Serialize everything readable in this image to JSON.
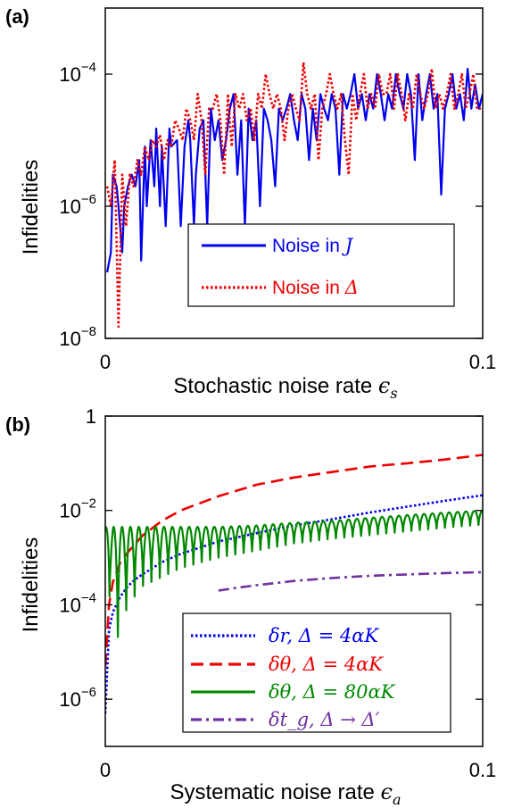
{
  "chart_data": [
    {
      "type": "line",
      "panel_label": "(a)",
      "xlabel": "Stochastic noise rate",
      "xlabel_symbol": "ϵ",
      "xlabel_sub": "s",
      "ylabel": "Infidelities",
      "x_scale": "linear",
      "y_scale": "log",
      "xlim": [
        0,
        0.1
      ],
      "ylim": [
        1e-08,
        0.001
      ],
      "x_ticks": [
        {
          "value": 0,
          "label": "0"
        },
        {
          "value": 0.1,
          "label": "0.1"
        }
      ],
      "y_ticks": [
        {
          "value": 1e-08,
          "base": "10",
          "exp": "−8"
        },
        {
          "value": 1e-06,
          "base": "10",
          "exp": "−6"
        },
        {
          "value": 0.0001,
          "base": "10",
          "exp": "−4"
        }
      ],
      "legend_position": "lower-right",
      "series": [
        {
          "name": "Noise in",
          "name_symbol": "J",
          "color": "#0000ee",
          "dash": "solid",
          "x": [
            0.0005,
            0.0015,
            0.002,
            0.003,
            0.0035,
            0.0045,
            0.005,
            0.006,
            0.007,
            0.008,
            0.009,
            0.0095,
            0.0105,
            0.011,
            0.012,
            0.013,
            0.0135,
            0.0145,
            0.015,
            0.016,
            0.017,
            0.0175,
            0.019,
            0.02,
            0.021,
            0.022,
            0.0225,
            0.0235,
            0.024,
            0.025,
            0.026,
            0.027,
            0.028,
            0.029,
            0.03,
            0.031,
            0.032,
            0.033,
            0.034,
            0.035,
            0.036,
            0.037,
            0.038,
            0.039,
            0.04,
            0.041,
            0.042,
            0.043,
            0.044,
            0.045,
            0.046,
            0.047,
            0.048,
            0.049,
            0.05,
            0.051,
            0.052,
            0.053,
            0.054,
            0.055,
            0.056,
            0.057,
            0.058,
            0.059,
            0.06,
            0.061,
            0.062,
            0.063,
            0.064,
            0.065,
            0.066,
            0.067,
            0.068,
            0.069,
            0.07,
            0.071,
            0.072,
            0.073,
            0.074,
            0.075,
            0.076,
            0.077,
            0.078,
            0.079,
            0.08,
            0.081,
            0.082,
            0.083,
            0.084,
            0.085,
            0.086,
            0.087,
            0.088,
            0.089,
            0.09,
            0.091,
            0.092,
            0.093,
            0.094,
            0.095,
            0.096,
            0.097,
            0.098,
            0.099,
            0.1
          ],
          "y": [
            1e-07,
            2e-07,
            3e-06,
            2e-06,
            1e-06,
            2e-07,
            1e-06,
            2e-06,
            3e-06,
            2e-06,
            5e-06,
            1.5e-07,
            8e-06,
            1e-06,
            1e-05,
            2e-06,
            1.5e-05,
            1e-06,
            8e-06,
            5e-07,
            1.5e-05,
            8e-06,
            1e-05,
            5e-07,
            8e-06,
            2e-05,
            1e-05,
            5e-07,
            3e-06,
            1.5e-05,
            2e-05,
            5e-07,
            3e-05,
            1e-05,
            2e-05,
            5e-06,
            1e-05,
            3e-05,
            5e-05,
            3e-06,
            2e-05,
            5e-07,
            3e-05,
            1e-05,
            2e-05,
            1e-06,
            3e-05,
            2e-05,
            1e-05,
            2e-06,
            3e-05,
            2e-05,
            3e-05,
            5e-05,
            2e-05,
            1e-05,
            5e-05,
            3e-05,
            5e-06,
            3e-05,
            1e-05,
            5e-05,
            3e-05,
            2e-05,
            5e-05,
            3e-05,
            3e-06,
            5e-05,
            3e-05,
            5e-05,
            0.0001,
            3e-05,
            5e-05,
            2e-05,
            5e-05,
            3e-05,
            0.0001,
            5e-05,
            2e-05,
            5e-05,
            3e-05,
            0.0001,
            5e-05,
            3e-05,
            0.0001,
            5e-05,
            5e-06,
            0.0001,
            2e-05,
            5e-05,
            0.0001,
            3e-05,
            5e-05,
            1.5e-06,
            3e-05,
            5e-05,
            0.0001,
            3e-05,
            5e-05,
            2e-05,
            0.00012,
            3e-05,
            7e-05,
            3e-05,
            5e-05
          ]
        },
        {
          "name": "Noise in",
          "name_symbol": "Δ",
          "color": "#ee0000",
          "dash": "dotted",
          "x": [
            0.0005,
            0.0015,
            0.0025,
            0.0035,
            0.0045,
            0.0055,
            0.0065,
            0.0075,
            0.0085,
            0.0095,
            0.0105,
            0.0115,
            0.0125,
            0.0135,
            0.0145,
            0.0155,
            0.0165,
            0.0175,
            0.0185,
            0.0195,
            0.0205,
            0.0215,
            0.0225,
            0.0235,
            0.0245,
            0.0255,
            0.0265,
            0.0275,
            0.0285,
            0.0295,
            0.0305,
            0.0315,
            0.0325,
            0.0335,
            0.0345,
            0.0355,
            0.0365,
            0.0375,
            0.0385,
            0.0395,
            0.0405,
            0.0415,
            0.0425,
            0.0435,
            0.0445,
            0.0455,
            0.0465,
            0.0475,
            0.0485,
            0.0495,
            0.0505,
            0.0515,
            0.0525,
            0.0535,
            0.0545,
            0.0555,
            0.0565,
            0.0575,
            0.0585,
            0.0595,
            0.0605,
            0.0615,
            0.0625,
            0.0635,
            0.0645,
            0.0655,
            0.0665,
            0.0675,
            0.0685,
            0.0695,
            0.0705,
            0.0715,
            0.0725,
            0.0735,
            0.0745,
            0.0755,
            0.0765,
            0.0775,
            0.0785,
            0.0795,
            0.0805,
            0.0815,
            0.0825,
            0.0835,
            0.0845,
            0.0855,
            0.0865,
            0.0875,
            0.0885,
            0.0895,
            0.0905,
            0.0915,
            0.0925,
            0.0935,
            0.0945,
            0.0955,
            0.0965,
            0.0975,
            0.0985,
            0.0995
          ],
          "y": [
            2e-06,
            1e-06,
            5e-06,
            1.5e-08,
            3e-06,
            5e-07,
            3e-06,
            2e-06,
            5e-06,
            3e-06,
            8e-06,
            5e-06,
            1e-05,
            8e-06,
            1.2e-05,
            5e-06,
            1e-05,
            8e-06,
            2e-05,
            1.5e-05,
            1e-05,
            3e-05,
            2e-05,
            1e-05,
            5e-05,
            2e-05,
            3e-06,
            3e-05,
            3e-05,
            5e-05,
            2e-05,
            3e-06,
            5e-05,
            8e-06,
            5e-05,
            3e-05,
            5e-05,
            2e-05,
            3e-05,
            1e-05,
            5e-05,
            3e-05,
            0.0001,
            5e-05,
            3e-05,
            5e-05,
            3e-05,
            1e-05,
            3e-05,
            5e-05,
            3e-05,
            2e-05,
            0.00015,
            5e-05,
            3e-05,
            5e-05,
            5e-06,
            3e-05,
            5e-05,
            0.0001,
            5e-05,
            3e-05,
            5e-05,
            1e-05,
            3e-06,
            5e-05,
            2e-05,
            5e-05,
            0.0001,
            3e-05,
            5e-05,
            3e-05,
            0.0001,
            5e-05,
            5e-05,
            0.0001,
            3e-05,
            0.0001,
            5e-05,
            2e-05,
            5e-05,
            3e-05,
            0.0001,
            5e-05,
            3e-05,
            5e-05,
            0.00012,
            3e-05,
            5e-05,
            3e-05,
            5e-05,
            0.0001,
            3e-05,
            5e-05,
            0.0001,
            3e-05,
            5e-05,
            0.0001,
            3e-05,
            3e-05
          ]
        }
      ]
    },
    {
      "type": "line",
      "panel_label": "(b)",
      "xlabel": "Systematic noise rate",
      "xlabel_symbol": "ϵ",
      "xlabel_sub": "a",
      "ylabel": "Infidelities",
      "x_scale": "linear",
      "y_scale": "log",
      "xlim": [
        0,
        0.1
      ],
      "ylim": [
        1e-07,
        1
      ],
      "x_ticks": [
        {
          "value": 0,
          "label": "0"
        },
        {
          "value": 0.1,
          "label": "0.1"
        }
      ],
      "y_ticks": [
        {
          "value": 1e-06,
          "base": "10",
          "exp": "−6"
        },
        {
          "value": 0.0001,
          "base": "10",
          "exp": "−4"
        },
        {
          "value": 0.01,
          "base": "10",
          "exp": "−2"
        },
        {
          "value": 1,
          "base": "1",
          "exp": ""
        }
      ],
      "legend_position": "lower-right",
      "series": [
        {
          "name": "δr, Δ = 4αK",
          "color": "#0000ee",
          "dash": "dotted",
          "x": [
            0,
            0.001,
            0.002,
            0.004,
            0.006,
            0.008,
            0.01,
            0.015,
            0.02,
            0.03,
            0.04,
            0.05,
            0.06,
            0.07,
            0.08,
            0.09,
            0.1
          ],
          "y": [
            5e-07,
            3e-05,
            7e-05,
            0.00015,
            0.00025,
            0.00035,
            0.00045,
            0.0008,
            0.0012,
            0.0022,
            0.0033,
            0.0048,
            0.0065,
            0.009,
            0.012,
            0.016,
            0.021
          ]
        },
        {
          "name": "δθ, Δ = 4αK",
          "color": "#ee0000",
          "dash": "dashed",
          "x": [
            0,
            0.001,
            0.002,
            0.004,
            0.006,
            0.008,
            0.01,
            0.015,
            0.02,
            0.03,
            0.04,
            0.05,
            0.06,
            0.07,
            0.08,
            0.09,
            0.1
          ],
          "y": [
            5e-06,
            0.0001,
            0.0003,
            0.0008,
            0.0013,
            0.002,
            0.003,
            0.006,
            0.01,
            0.02,
            0.035,
            0.05,
            0.065,
            0.085,
            0.1,
            0.12,
            0.15
          ]
        },
        {
          "name": "δθ, Δ = 80αK",
          "color": "#008800",
          "dash": "solid",
          "oscillating": true,
          "oscillation_count": 45,
          "x": [
            0,
            0.002,
            0.004,
            0.006,
            0.01,
            0.02,
            0.03,
            0.04,
            0.05,
            0.06,
            0.07,
            0.08,
            0.09,
            0.1
          ],
          "upper": [
            0.0045,
            0.0045,
            0.0045,
            0.0045,
            0.0045,
            0.0045,
            0.0045,
            0.0048,
            0.0055,
            0.006,
            0.007,
            0.008,
            0.009,
            0.01
          ],
          "lower": [
            0.0045,
            1e-05,
            3e-05,
            0.0001,
            0.00025,
            0.0006,
            0.001,
            0.0014,
            0.002,
            0.0025,
            0.003,
            0.0036,
            0.0043,
            0.005
          ]
        },
        {
          "name": "δt_g, Δ → Δ′",
          "color": "#7030a0",
          "dash": "dashdot",
          "x": [
            0.03,
            0.035,
            0.04,
            0.05,
            0.06,
            0.07,
            0.08,
            0.09,
            0.1
          ],
          "y": [
            0.0002,
            0.00023,
            0.00026,
            0.00032,
            0.00037,
            0.00041,
            0.00044,
            0.00047,
            0.00049
          ]
        }
      ]
    }
  ]
}
